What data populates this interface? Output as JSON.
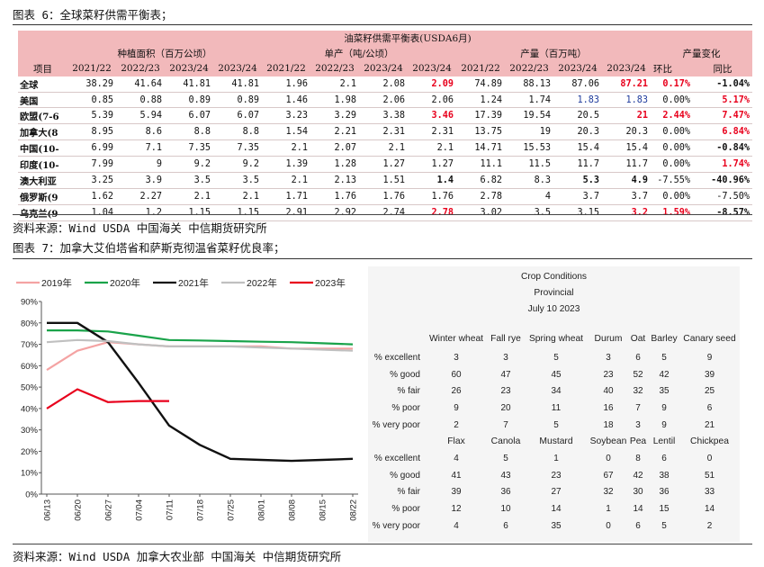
{
  "caption1": "图表 6：全球菜籽供需平衡表；",
  "caption2": "图表 7：加拿大艾伯塔省和萨斯克彻温省菜籽优良率；",
  "source1": "资料来源：Wind USDA 中国海关 中信期货研究所",
  "source2": "资料来源：Wind USDA 加拿大农业部 中国海关 中信期货研究所",
  "table": {
    "title": "油菜籽供需平衡表(USDA6月)",
    "groups": [
      "种植面积（百万公顷）",
      "单产（吨/公顷）",
      "产量（百万吨）",
      "产量变化"
    ],
    "col_header_item": "项目",
    "years": [
      "2021/22",
      "2022/23",
      "2023/24",
      "2023/24",
      "2021/22",
      "2022/23",
      "2023/24",
      "2023/24",
      "2021/22",
      "2022/23",
      "2023/24",
      "2023/24"
    ],
    "change_headers": [
      "环比",
      "同比"
    ],
    "rows": [
      {
        "name": "全球",
        "cells": [
          "38.29",
          "41.64",
          "41.81",
          "41.81",
          "1.96",
          "2.1",
          "2.08",
          "2.09",
          "74.89",
          "88.13",
          "87.06",
          "87.21",
          "0.17%",
          "-1.04%"
        ]
      },
      {
        "name": "美国",
        "cells": [
          "0.85",
          "0.88",
          "0.89",
          "0.89",
          "1.46",
          "1.98",
          "2.06",
          "2.06",
          "1.24",
          "1.74",
          "1.83",
          "1.83",
          "0.00%",
          "5.17%"
        ]
      },
      {
        "name": "欧盟(7-6",
        "cells": [
          "5.39",
          "5.94",
          "6.07",
          "6.07",
          "3.23",
          "3.29",
          "3.38",
          "3.46",
          "17.39",
          "19.54",
          "20.5",
          "21",
          "2.44%",
          "7.47%"
        ]
      },
      {
        "name": "加拿大(8",
        "cells": [
          "8.95",
          "8.6",
          "8.8",
          "8.8",
          "1.54",
          "2.21",
          "2.31",
          "2.31",
          "13.75",
          "19",
          "20.3",
          "20.3",
          "0.00%",
          "6.84%"
        ]
      },
      {
        "name": "中国(10-",
        "cells": [
          "6.99",
          "7.1",
          "7.35",
          "7.35",
          "2.1",
          "2.07",
          "2.1",
          "2.1",
          "14.71",
          "15.53",
          "15.4",
          "15.4",
          "0.00%",
          "-0.84%"
        ]
      },
      {
        "name": "印度(10-",
        "cells": [
          "7.99",
          "9",
          "9.2",
          "9.2",
          "1.39",
          "1.28",
          "1.27",
          "1.27",
          "11.1",
          "11.5",
          "11.7",
          "11.7",
          "0.00%",
          "1.74%"
        ]
      },
      {
        "name": "澳大利亚",
        "cells": [
          "3.25",
          "3.9",
          "3.5",
          "3.5",
          "2.1",
          "2.13",
          "1.51",
          "1.4",
          "6.82",
          "8.3",
          "5.3",
          "4.9",
          "-7.55%",
          "-40.96%"
        ]
      },
      {
        "name": "俄罗斯(9",
        "cells": [
          "1.62",
          "2.27",
          "2.1",
          "2.1",
          "1.71",
          "1.76",
          "1.76",
          "1.76",
          "2.78",
          "4",
          "3.7",
          "3.7",
          "0.00%",
          "-7.50%"
        ]
      },
      {
        "name": "乌克兰(9",
        "cells": [
          "1.04",
          "1.2",
          "1.15",
          "1.15",
          "2.91",
          "2.92",
          "2.74",
          "2.78",
          "3.02",
          "3.5",
          "3.15",
          "3.2",
          "1.59%",
          "-8.57%"
        ]
      }
    ]
  },
  "chart_data": {
    "type": "line",
    "title": "",
    "xlabel": "",
    "ylabel": "",
    "x": [
      "06/13",
      "06/20",
      "06/27",
      "07/04",
      "07/11",
      "07/18",
      "07/25",
      "08/01",
      "08/08",
      "08/15",
      "08/22"
    ],
    "ylim": [
      0,
      90
    ],
    "yticks": [
      "0%",
      "10%",
      "20%",
      "30%",
      "40%",
      "50%",
      "60%",
      "70%",
      "80%",
      "90%"
    ],
    "legend_position": "top",
    "series": [
      {
        "name": "2019年",
        "color": "#f4a3a3",
        "values": [
          58,
          67,
          71,
          70,
          69,
          69,
          69,
          69,
          68,
          68,
          68
        ]
      },
      {
        "name": "2020年",
        "color": "#1aa34a",
        "values": [
          76.5,
          76.5,
          76,
          74,
          72,
          71.8,
          71.5,
          71.2,
          71,
          70.5,
          70
        ]
      },
      {
        "name": "2021年",
        "color": "#111111",
        "values": [
          80,
          80,
          71,
          52,
          32,
          23,
          16.5,
          16,
          15.5,
          16,
          16.5
        ]
      },
      {
        "name": "2022年",
        "color": "#c0c0c0",
        "values": [
          71,
          72,
          71.5,
          70,
          69,
          69,
          69,
          68.5,
          68,
          67.5,
          67
        ]
      },
      {
        "name": "2023年",
        "color": "#e8001c",
        "values": [
          40,
          49,
          43,
          43.5,
          43.5,
          null,
          null,
          null,
          null,
          null,
          null
        ]
      }
    ]
  },
  "crop": {
    "title1": "Crop Conditions",
    "title2": "Provincial",
    "title3": "July 10 2023",
    "row_labels": [
      "% excellent",
      "% good",
      "% fair",
      "% poor",
      "% very poor"
    ],
    "group1": {
      "crops": [
        "Winter wheat",
        "Fall rye",
        "Spring wheat",
        "Durum",
        "Oat",
        "Barley",
        "Canary seed"
      ],
      "rows": [
        [
          "3",
          "3",
          "5",
          "3",
          "6",
          "5",
          "9"
        ],
        [
          "60",
          "47",
          "45",
          "23",
          "52",
          "42",
          "39"
        ],
        [
          "26",
          "23",
          "34",
          "40",
          "32",
          "35",
          "25"
        ],
        [
          "9",
          "20",
          "11",
          "16",
          "7",
          "9",
          "6"
        ],
        [
          "2",
          "7",
          "5",
          "18",
          "3",
          "9",
          "21"
        ]
      ]
    },
    "group2": {
      "crops": [
        "Flax",
        "Canola",
        "Mustard",
        "Soybean",
        "Pea",
        "Lentil",
        "Chickpea"
      ],
      "rows": [
        [
          "4",
          "5",
          "1",
          "0",
          "8",
          "6",
          "0"
        ],
        [
          "41",
          "43",
          "23",
          "67",
          "42",
          "38",
          "51"
        ],
        [
          "39",
          "36",
          "27",
          "32",
          "30",
          "36",
          "33"
        ],
        [
          "12",
          "10",
          "14",
          "1",
          "14",
          "15",
          "14"
        ],
        [
          "4",
          "6",
          "35",
          "0",
          "6",
          "5",
          "2"
        ]
      ]
    }
  }
}
